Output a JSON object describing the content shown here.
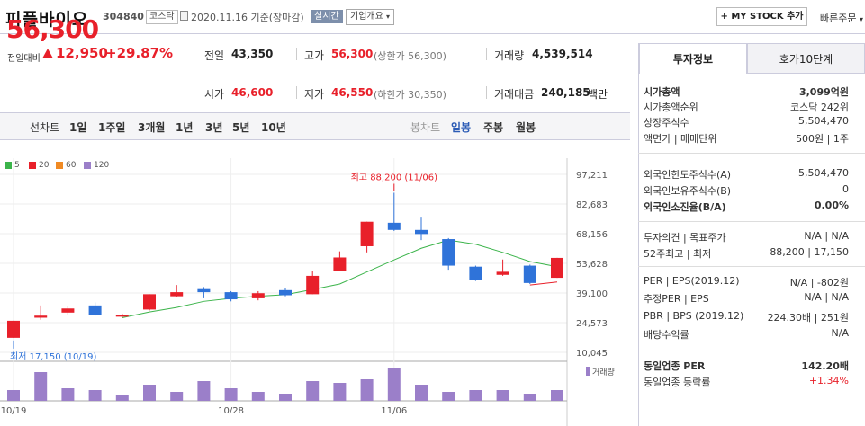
{
  "header": {
    "name": "피플바이오",
    "code": "304840",
    "market": "코스닥",
    "date": "2020.11.16 기준(장마감)",
    "realtime": "실시간",
    "corp_info": "기업개요",
    "mystock": "+ MY STOCK 추가",
    "quick_order": "빠른주문"
  },
  "price": {
    "current": "56,300",
    "change_label": "전일대비",
    "change": "12,950",
    "change_pct": "+29.87%"
  },
  "stats": {
    "prev_label": "전일",
    "prev": "43,350",
    "high_label": "고가",
    "high": "56,300",
    "upper_limit": "(상한가 56,300)",
    "volume_label": "거래량",
    "volume": "4,539,514",
    "open_label": "시가",
    "open": "46,600",
    "low_label": "저가",
    "low": "46,550",
    "lower_limit": "(하한가 30,350)",
    "amount_label": "거래대금",
    "amount": "240,185",
    "amount_unit": "백만"
  },
  "periods": {
    "line_chart": "선차트",
    "items": [
      "1일",
      "1주일",
      "3개월",
      "1년",
      "3년",
      "5년",
      "10년"
    ],
    "candle_chart": "봉차트",
    "candle_items": [
      "일봉",
      "주봉",
      "월봉"
    ]
  },
  "legend": [
    {
      "label": "5",
      "color": "#3cb44b"
    },
    {
      "label": "20",
      "color": "#e8202a"
    },
    {
      "label": "60",
      "color": "#f08a24"
    },
    {
      "label": "120",
      "color": "#9b7fc9"
    }
  ],
  "chart_data": {
    "type": "candlestick",
    "y_ticks": [
      "97,211",
      "82,683",
      "68,156",
      "53,628",
      "39,100",
      "24,573",
      "10,045"
    ],
    "ylim": [
      10045,
      97211
    ],
    "x_labels": [
      "10/19",
      "10/28",
      "11/06"
    ],
    "high_note": "최고 88,200 (11/06)",
    "low_note": "최저 17,150 (10/19)",
    "volume_label": "거래량",
    "candles": [
      {
        "o": 17150,
        "c": 25500,
        "h": 25500,
        "l": 17150
      },
      {
        "o": 27000,
        "c": 28000,
        "h": 33000,
        "l": 26000
      },
      {
        "o": 29500,
        "c": 31500,
        "h": 32500,
        "l": 28500
      },
      {
        "o": 33000,
        "c": 28500,
        "h": 34500,
        "l": 28000
      },
      {
        "o": 27500,
        "c": 28500,
        "h": 29000,
        "l": 27000
      },
      {
        "o": 31000,
        "c": 38500,
        "h": 38500,
        "l": 30500
      },
      {
        "o": 37500,
        "c": 39500,
        "h": 43000,
        "l": 37000
      },
      {
        "o": 41000,
        "c": 39500,
        "h": 42000,
        "l": 36500
      },
      {
        "o": 39500,
        "c": 36000,
        "h": 40000,
        "l": 35000
      },
      {
        "o": 36500,
        "c": 39000,
        "h": 40000,
        "l": 35500
      },
      {
        "o": 40500,
        "c": 38000,
        "h": 41500,
        "l": 37500
      },
      {
        "o": 38500,
        "c": 47500,
        "h": 50000,
        "l": 38500
      },
      {
        "o": 50000,
        "c": 56500,
        "h": 59500,
        "l": 50000
      },
      {
        "o": 62000,
        "c": 74000,
        "h": 74000,
        "l": 59000
      },
      {
        "o": 73500,
        "c": 70000,
        "h": 88200,
        "l": 69500
      },
      {
        "o": 70000,
        "c": 68000,
        "h": 76000,
        "l": 65000
      },
      {
        "o": 65500,
        "c": 52500,
        "h": 66000,
        "l": 50500
      },
      {
        "o": 52000,
        "c": 45500,
        "h": 52500,
        "l": 45000
      },
      {
        "o": 48000,
        "c": 49500,
        "h": 55500,
        "l": 47500
      },
      {
        "o": 52500,
        "c": 44000,
        "h": 53000,
        "l": 43500
      },
      {
        "o": 46550,
        "c": 56300,
        "h": 56300,
        "l": 46550
      }
    ],
    "ma5": [
      null,
      null,
      null,
      null,
      27000,
      29800,
      32000,
      35000,
      36500,
      37500,
      38300,
      40800,
      43500,
      49400,
      55300,
      61000,
      65000,
      63000,
      59000,
      54500,
      52000
    ],
    "ma20": [
      null,
      null,
      null,
      null,
      null,
      null,
      null,
      null,
      null,
      null,
      null,
      null,
      null,
      null,
      null,
      null,
      null,
      null,
      null,
      43000,
      44500
    ],
    "volumes": [
      0.3,
      0.8,
      0.35,
      0.3,
      0.15,
      0.45,
      0.25,
      0.55,
      0.35,
      0.25,
      0.2,
      0.55,
      0.5,
      0.6,
      0.9,
      0.45,
      0.25,
      0.3,
      0.3,
      0.2,
      0.3
    ]
  },
  "right": {
    "tab1": "투자정보",
    "tab2": "호가10단계",
    "rows": [
      {
        "l": "시가총액",
        "v": "3,099억원",
        "b": true
      },
      {
        "l": "시가총액순위",
        "v": "코스닥 242위"
      },
      {
        "l": "상장주식수",
        "v": "5,504,470"
      },
      {
        "l": "액면가 | 매매단위",
        "v": "500원 | 1주"
      },
      {
        "l": "외국인한도주식수(A)",
        "v": "5,504,470"
      },
      {
        "l": "외국인보유주식수(B)",
        "v": "0"
      },
      {
        "l": "외국인소진율(B/A)",
        "v": "0.00%",
        "b": true
      },
      {
        "l": "투자의견 | 목표주가",
        "v": "N/A | N/A"
      },
      {
        "l": "52주최고 | 최저",
        "v": "88,200 | 17,150"
      },
      {
        "l": "PER | EPS(2019.12)",
        "v": "N/A | -802원"
      },
      {
        "l": "추정PER | EPS",
        "v": "N/A | N/A"
      },
      {
        "l": "PBR | BPS (2019.12)",
        "v": "224.30배 | 251원"
      },
      {
        "l": "배당수익률",
        "v": "N/A"
      },
      {
        "l": "동일업종 PER",
        "v": "142.20배",
        "b": true
      },
      {
        "l": "동일업종 등락률",
        "v": "+1.34%",
        "red": true
      }
    ]
  }
}
